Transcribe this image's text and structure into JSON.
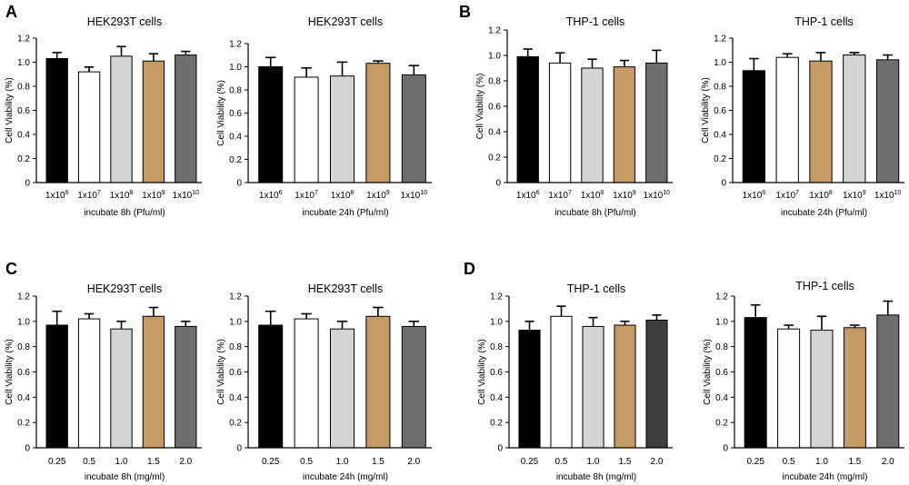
{
  "panel_labels": [
    "A",
    "B",
    "C",
    "D"
  ],
  "colors": {
    "black": "#000000",
    "white": "#ffffff",
    "lightgray": "#d4d4d4",
    "tan": "#c59a65",
    "darkgray": "#6e6e6e",
    "charcoal": "#3e3e3e"
  },
  "chart_data": [
    {
      "type": "bar",
      "panel": "A",
      "title": "HEK293T cells",
      "ylabel": "Cell Viability (%)",
      "xlabel": "incubate 8h (Pfu/ml)",
      "ylim": [
        0,
        1.2
      ],
      "yticks": [
        "0",
        "0.2",
        "0.4",
        "0.6",
        "0.8",
        "1.0",
        "1.2"
      ],
      "categories": [
        "1x10",
        "1x10",
        "1x10",
        "1x10",
        "1x10"
      ],
      "category_exponents": [
        "6",
        "7",
        "8",
        "9",
        "10"
      ],
      "values": [
        1.03,
        0.92,
        1.05,
        1.01,
        1.06
      ],
      "errors": [
        0.05,
        0.04,
        0.08,
        0.06,
        0.03
      ],
      "bar_colors": [
        "#000000",
        "#ffffff",
        "#d4d4d4",
        "#c59a65",
        "#6e6e6e"
      ]
    },
    {
      "type": "bar",
      "panel": "A",
      "title": "HEK293T cells",
      "ylabel": "Cell Viability (%)",
      "xlabel": "incubate 24h (Pfu/ml)",
      "ylim": [
        0,
        1.2
      ],
      "yticks": [
        "0",
        "0.2",
        "0.4",
        "0.6",
        "0.8",
        "1.0",
        "1.2"
      ],
      "categories": [
        "1x10",
        "1x10",
        "1x10",
        "1x10",
        "1x10"
      ],
      "category_exponents": [
        "6",
        "7",
        "8",
        "9",
        "10"
      ],
      "values": [
        1.0,
        0.91,
        0.92,
        1.03,
        0.93
      ],
      "errors": [
        0.08,
        0.08,
        0.12,
        0.02,
        0.08
      ],
      "bar_colors": [
        "#000000",
        "#ffffff",
        "#d4d4d4",
        "#c59a65",
        "#6e6e6e"
      ]
    },
    {
      "type": "bar",
      "panel": "B",
      "title": "THP-1 cells",
      "ylabel": "Cell Viability (%)",
      "xlabel": "incubate 8h (Pfu/ml)",
      "ylim": [
        0,
        1.2
      ],
      "yticks": [
        "0",
        "0.2",
        "0.4",
        "0.6",
        "0.8",
        "1.0",
        "1.2"
      ],
      "categories": [
        "1x10",
        "1x10",
        "1x10",
        "1x10",
        "1x10"
      ],
      "category_exponents": [
        "6",
        "7",
        "8",
        "9",
        "10"
      ],
      "values": [
        0.99,
        0.94,
        0.9,
        0.91,
        0.94
      ],
      "errors": [
        0.06,
        0.08,
        0.07,
        0.05,
        0.1
      ],
      "bar_colors": [
        "#000000",
        "#ffffff",
        "#d4d4d4",
        "#c59a65",
        "#6e6e6e"
      ]
    },
    {
      "type": "bar",
      "panel": "B",
      "title": "THP-1 cells",
      "ylabel": "Cell Viability (%)",
      "xlabel": "incubate 24h (Pfu/ml)",
      "ylim": [
        0,
        1.2
      ],
      "yticks": [
        "0",
        "0.2",
        "0.4",
        "0.6",
        "0.8",
        "1.0",
        "1.2"
      ],
      "categories": [
        "1x10",
        "1x10",
        "1x10",
        "1x10",
        "1x10"
      ],
      "category_exponents": [
        "6",
        "7",
        "8",
        "9",
        "10"
      ],
      "values": [
        0.93,
        1.04,
        1.01,
        1.06,
        1.02
      ],
      "errors": [
        0.1,
        0.03,
        0.07,
        0.02,
        0.04
      ],
      "bar_colors": [
        "#000000",
        "#ffffff",
        "#c59a65",
        "#d4d4d4",
        "#6e6e6e"
      ]
    },
    {
      "type": "bar",
      "panel": "C",
      "title": "HEK293T cells",
      "ylabel": "Cell Viability (%)",
      "xlabel": "incubate 8h (mg/ml)",
      "ylim": [
        0,
        1.2
      ],
      "yticks": [
        "0",
        "0.2",
        "0.4",
        "0.6",
        "0.8",
        "1.0",
        "1.2"
      ],
      "categories": [
        "0.25",
        "0.5",
        "1.0",
        "1.5",
        "2.0"
      ],
      "values": [
        0.97,
        1.02,
        0.94,
        1.04,
        0.96
      ],
      "errors": [
        0.11,
        0.04,
        0.06,
        0.07,
        0.04
      ],
      "bar_colors": [
        "#000000",
        "#ffffff",
        "#d4d4d4",
        "#c59a65",
        "#6e6e6e"
      ]
    },
    {
      "type": "bar",
      "panel": "C",
      "title": "HEK293T cells",
      "ylabel": "Cell Viability (%)",
      "xlabel": "incubate 24h (mg/ml)",
      "ylim": [
        0,
        1.2
      ],
      "yticks": [
        "0",
        "0.2",
        "0.4",
        "0.6",
        "0.8",
        "1.0",
        "1.2"
      ],
      "categories": [
        "0.25",
        "0.5",
        "1.0",
        "1.5",
        "2.0"
      ],
      "values": [
        0.97,
        1.02,
        0.94,
        1.04,
        0.96
      ],
      "errors": [
        0.11,
        0.04,
        0.06,
        0.07,
        0.04
      ],
      "bar_colors": [
        "#000000",
        "#ffffff",
        "#d4d4d4",
        "#c59a65",
        "#6e6e6e"
      ]
    },
    {
      "type": "bar",
      "panel": "D",
      "title": "THP-1 cells",
      "ylabel": "Cell Viability (%)",
      "xlabel": "incubate 8h (mg/ml)",
      "ylim": [
        0,
        1.2
      ],
      "yticks": [
        "0",
        "0.2",
        "0.4",
        "0.6",
        "0.8",
        "1.0",
        "1.2"
      ],
      "categories": [
        "0.25",
        "0.5",
        "1.0",
        "1.5",
        "2.0"
      ],
      "values": [
        0.93,
        1.04,
        0.96,
        0.97,
        1.01
      ],
      "errors": [
        0.07,
        0.08,
        0.07,
        0.03,
        0.04
      ],
      "bar_colors": [
        "#000000",
        "#ffffff",
        "#d4d4d4",
        "#c59a65",
        "#3e3e3e"
      ]
    },
    {
      "type": "bar",
      "panel": "D",
      "title": "THP-1 cells",
      "ylabel": "Cell Viability (%)",
      "xlabel": "incubate 24h (mg/ml)",
      "ylim": [
        0,
        1.2
      ],
      "yticks": [
        "0",
        "0.2",
        "0.4",
        "0.6",
        "0.8",
        "1.0",
        "1.2"
      ],
      "categories": [
        "0.25",
        "0.5",
        "1.0",
        "1.5",
        "2.0"
      ],
      "values": [
        1.03,
        0.94,
        0.93,
        0.95,
        1.05
      ],
      "errors": [
        0.1,
        0.03,
        0.11,
        0.02,
        0.11
      ],
      "bar_colors": [
        "#000000",
        "#ffffff",
        "#d4d4d4",
        "#c59a65",
        "#6e6e6e"
      ]
    }
  ]
}
